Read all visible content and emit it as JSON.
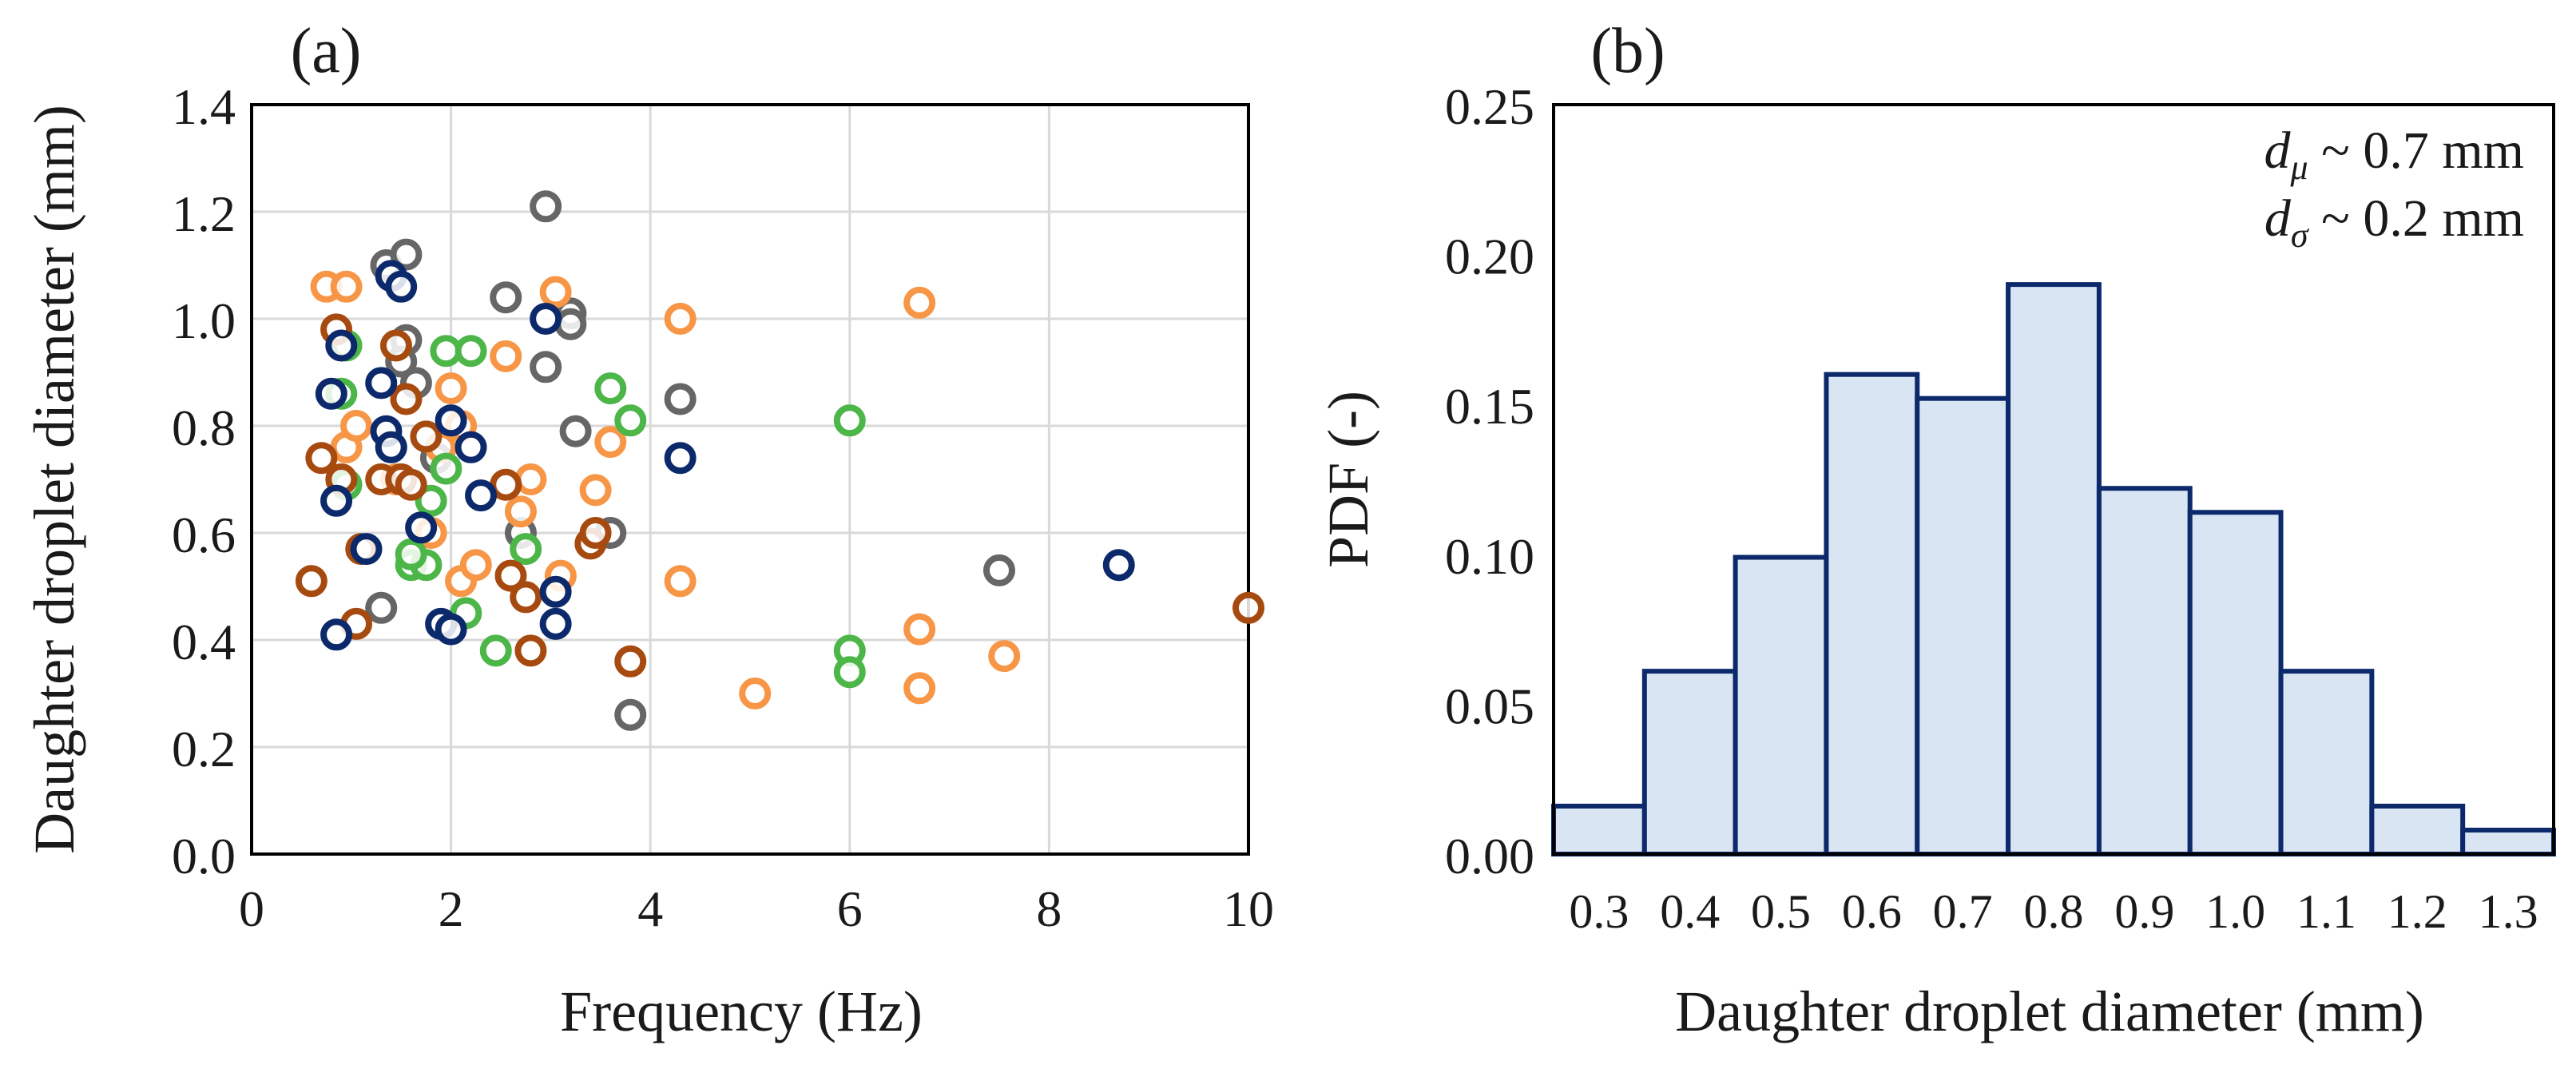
{
  "chart_data": [
    {
      "panel_label": "(a)",
      "type": "scatter",
      "title": "",
      "xlabel": "Frequency (Hz)",
      "ylabel": "Daughter droplet diameter (mm)",
      "xlim": [
        0,
        10
      ],
      "ylim": [
        0,
        1.4
      ],
      "xticks": [
        "0",
        "2",
        "4",
        "6",
        "8",
        "10"
      ],
      "xtick_values": [
        0,
        2,
        4,
        6,
        8,
        10
      ],
      "yticks": [
        "0.0",
        "0.2",
        "0.4",
        "0.6",
        "0.8",
        "1.0",
        "1.2",
        "1.4"
      ],
      "ytick_values": [
        0,
        0.2,
        0.4,
        0.6,
        0.8,
        1.0,
        1.2,
        1.4
      ],
      "grid": true,
      "marker": "open circle",
      "series": [
        {
          "name": "gray",
          "color": "#666666",
          "points": [
            [
              1.35,
              1.1
            ],
            [
              1.55,
              1.12
            ],
            [
              1.3,
              0.46
            ],
            [
              2.55,
              1.04
            ],
            [
              2.95,
              1.21
            ],
            [
              2.95,
              0.91
            ],
            [
              3.2,
              1.01
            ],
            [
              3.2,
              0.99
            ],
            [
              3.25,
              0.79
            ],
            [
              1.55,
              0.96
            ],
            [
              1.65,
              0.88
            ],
            [
              1.85,
              0.74
            ],
            [
              2.7,
              0.6
            ],
            [
              3.6,
              0.6
            ],
            [
              4.3,
              0.85
            ],
            [
              3.8,
              0.26
            ],
            [
              7.5,
              0.53
            ],
            [
              1.5,
              0.92
            ]
          ]
        },
        {
          "name": "orange",
          "color": "#F79646",
          "points": [
            [
              0.75,
              1.06
            ],
            [
              0.95,
              1.06
            ],
            [
              0.95,
              0.76
            ],
            [
              1.05,
              0.8
            ],
            [
              2.0,
              0.87
            ],
            [
              2.55,
              0.93
            ],
            [
              2.1,
              0.8
            ],
            [
              1.8,
              0.6
            ],
            [
              2.1,
              0.51
            ],
            [
              2.25,
              0.54
            ],
            [
              2.7,
              0.64
            ],
            [
              2.8,
              0.7
            ],
            [
              3.05,
              1.05
            ],
            [
              3.1,
              0.52
            ],
            [
              3.45,
              0.68
            ],
            [
              3.6,
              0.77
            ],
            [
              4.3,
              1.0
            ],
            [
              4.3,
              0.51
            ],
            [
              5.05,
              0.3
            ],
            [
              6.7,
              1.03
            ],
            [
              6.7,
              0.42
            ],
            [
              6.7,
              0.31
            ],
            [
              7.55,
              0.37
            ],
            [
              1.45,
              0.7
            ],
            [
              1.9,
              0.76
            ]
          ]
        },
        {
          "name": "green",
          "color": "#4CB648",
          "points": [
            [
              0.95,
              0.95
            ],
            [
              0.9,
              0.86
            ],
            [
              0.95,
              0.69
            ],
            [
              1.4,
              0.76
            ],
            [
              1.6,
              0.54
            ],
            [
              1.75,
              0.54
            ],
            [
              1.8,
              0.66
            ],
            [
              1.95,
              0.94
            ],
            [
              2.2,
              0.94
            ],
            [
              1.95,
              0.72
            ],
            [
              2.15,
              0.45
            ],
            [
              2.45,
              0.38
            ],
            [
              2.75,
              0.57
            ],
            [
              3.6,
              0.87
            ],
            [
              3.8,
              0.81
            ],
            [
              6.0,
              0.81
            ],
            [
              6.0,
              0.38
            ],
            [
              6.0,
              0.34
            ],
            [
              1.6,
              0.56
            ]
          ]
        },
        {
          "name": "dark orange",
          "color": "#A64A0F",
          "points": [
            [
              0.6,
              0.51
            ],
            [
              0.7,
              0.74
            ],
            [
              0.85,
              0.98
            ],
            [
              0.9,
              0.7
            ],
            [
              1.05,
              0.43
            ],
            [
              1.3,
              0.7
            ],
            [
              1.45,
              0.95
            ],
            [
              1.5,
              0.7
            ],
            [
              1.55,
              0.85
            ],
            [
              1.6,
              0.69
            ],
            [
              1.75,
              0.78
            ],
            [
              2.55,
              0.69
            ],
            [
              2.6,
              0.52
            ],
            [
              2.75,
              0.48
            ],
            [
              2.8,
              0.38
            ],
            [
              3.4,
              0.58
            ],
            [
              3.45,
              0.6
            ],
            [
              3.8,
              0.36
            ],
            [
              10.0,
              0.46
            ],
            [
              1.1,
              0.57
            ]
          ]
        },
        {
          "name": "navy",
          "color": "#0C2A6B",
          "points": [
            [
              0.8,
              0.86
            ],
            [
              0.85,
              0.66
            ],
            [
              0.85,
              0.41
            ],
            [
              0.9,
              0.95
            ],
            [
              1.15,
              0.57
            ],
            [
              1.3,
              0.88
            ],
            [
              1.35,
              0.79
            ],
            [
              1.4,
              0.76
            ],
            [
              1.4,
              1.08
            ],
            [
              1.5,
              1.06
            ],
            [
              1.7,
              0.61
            ],
            [
              1.9,
              0.43
            ],
            [
              2.0,
              0.42
            ],
            [
              2.0,
              0.81
            ],
            [
              2.2,
              0.76
            ],
            [
              2.3,
              0.67
            ],
            [
              2.95,
              1.0
            ],
            [
              3.05,
              0.49
            ],
            [
              3.05,
              0.43
            ],
            [
              4.3,
              0.74
            ],
            [
              8.7,
              0.54
            ]
          ]
        }
      ]
    },
    {
      "panel_label": "(b)",
      "type": "bar",
      "subtype": "histogram",
      "title": "",
      "xlabel": "Daughter droplet diameter (mm)",
      "ylabel": "PDF (-)",
      "categories": [
        "0.3",
        "0.4",
        "0.5",
        "0.6",
        "0.7",
        "0.8",
        "0.9",
        "1.0",
        "1.1",
        "1.2",
        "1.3"
      ],
      "values": [
        0.016,
        0.061,
        0.099,
        0.16,
        0.152,
        0.19,
        0.122,
        0.114,
        0.061,
        0.016,
        0.008
      ],
      "ylim": [
        0,
        0.25
      ],
      "yticks": [
        "0.00",
        "0.05",
        "0.10",
        "0.15",
        "0.20",
        "0.25"
      ],
      "ytick_values": [
        0,
        0.05,
        0.1,
        0.15,
        0.2,
        0.25
      ],
      "grid": false,
      "bar_fill": "#DAE5F4",
      "bar_stroke": "#0C2A6B",
      "annotations": [
        {
          "symbol": "d",
          "subscript": "μ",
          "text": " ~ 0.7 mm"
        },
        {
          "symbol": "d",
          "subscript": "σ",
          "text": " ~ 0.2 mm"
        }
      ],
      "annotation_color": "#0C2A6B"
    }
  ]
}
